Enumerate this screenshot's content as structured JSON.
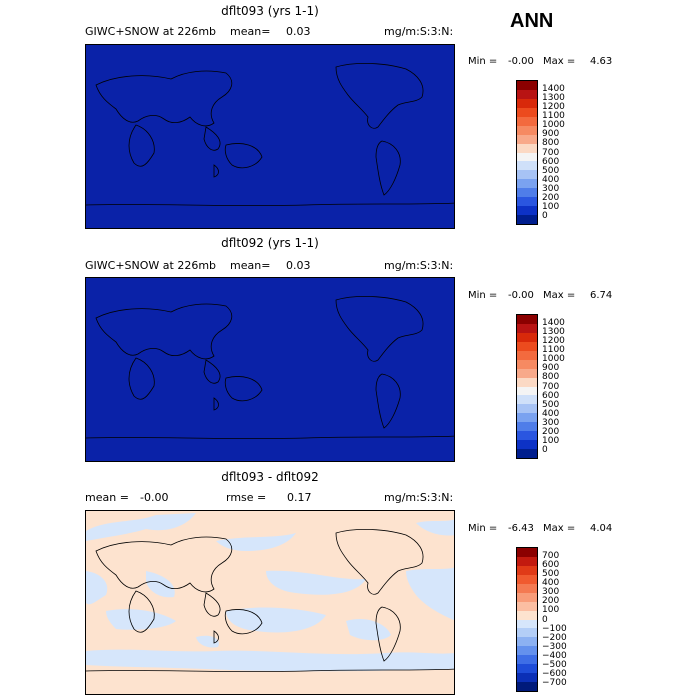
{
  "header": {
    "season": "ANN"
  },
  "panels": [
    {
      "title": "dflt093 (yrs 1-1)",
      "left_label": "GIWC+SNOW at 226mb",
      "mid_label": "mean=",
      "mid_value": "0.03",
      "units": "mg/m:S:3:N:",
      "min_label": "Min =",
      "min_value": "-0.00",
      "max_label": "Max =",
      "max_value": "4.63",
      "colorbar": [
        "1400",
        "1300",
        "1200",
        "1100",
        "1000",
        "900",
        "800",
        "700",
        "600",
        "500",
        "400",
        "300",
        "200",
        "100",
        "0"
      ]
    },
    {
      "title": "dflt092 (yrs 1-1)",
      "left_label": "GIWC+SNOW at 226mb",
      "mid_label": "mean=",
      "mid_value": "0.03",
      "units": "mg/m:S:3:N:",
      "min_label": "Min =",
      "min_value": "-0.00",
      "max_label": "Max =",
      "max_value": "6.74",
      "colorbar": [
        "1400",
        "1300",
        "1200",
        "1100",
        "1000",
        "900",
        "800",
        "700",
        "600",
        "500",
        "400",
        "300",
        "200",
        "100",
        "0"
      ]
    },
    {
      "title": "dflt093 - dflt092",
      "left_label": "mean =",
      "left_value": "-0.00",
      "mid_label": "rmse =",
      "mid_value": "0.17",
      "units": "mg/m:S:3:N:",
      "min_label": "Min =",
      "min_value": "-6.43",
      "max_label": "Max =",
      "max_value": "4.04",
      "colorbar": [
        "700",
        "600",
        "500",
        "400",
        "300",
        "200",
        "100",
        "0",
        "−100",
        "−200",
        "−300",
        "−400",
        "−500",
        "−600",
        "−700"
      ]
    }
  ],
  "colors": {
    "map_fill_absolute": "#0a22a8",
    "diff_positive": "#fde3cf",
    "diff_negative": "#d6e6fb",
    "abs_scale": [
      "#8b0000",
      "#b81313",
      "#d8290a",
      "#ec4b1e",
      "#f36a3e",
      "#f68a62",
      "#f8a98a",
      "#fbd9c4",
      "#f4f4f4",
      "#cfe0f9",
      "#a7c3f5",
      "#7aa2f0",
      "#4f7de9",
      "#2a56e0",
      "#0d32c6",
      "#001e8e"
    ],
    "diff_scale": [
      "#8b0000",
      "#c21a0f",
      "#e03a17",
      "#f05a2f",
      "#f47a52",
      "#f89c79",
      "#fbbea2",
      "#fde3cf",
      "#d6e6fb",
      "#b3cef7",
      "#8cb1f2",
      "#6491ed",
      "#3e6ee6",
      "#1e4cd8",
      "#0b2fb6",
      "#001a7a"
    ]
  }
}
